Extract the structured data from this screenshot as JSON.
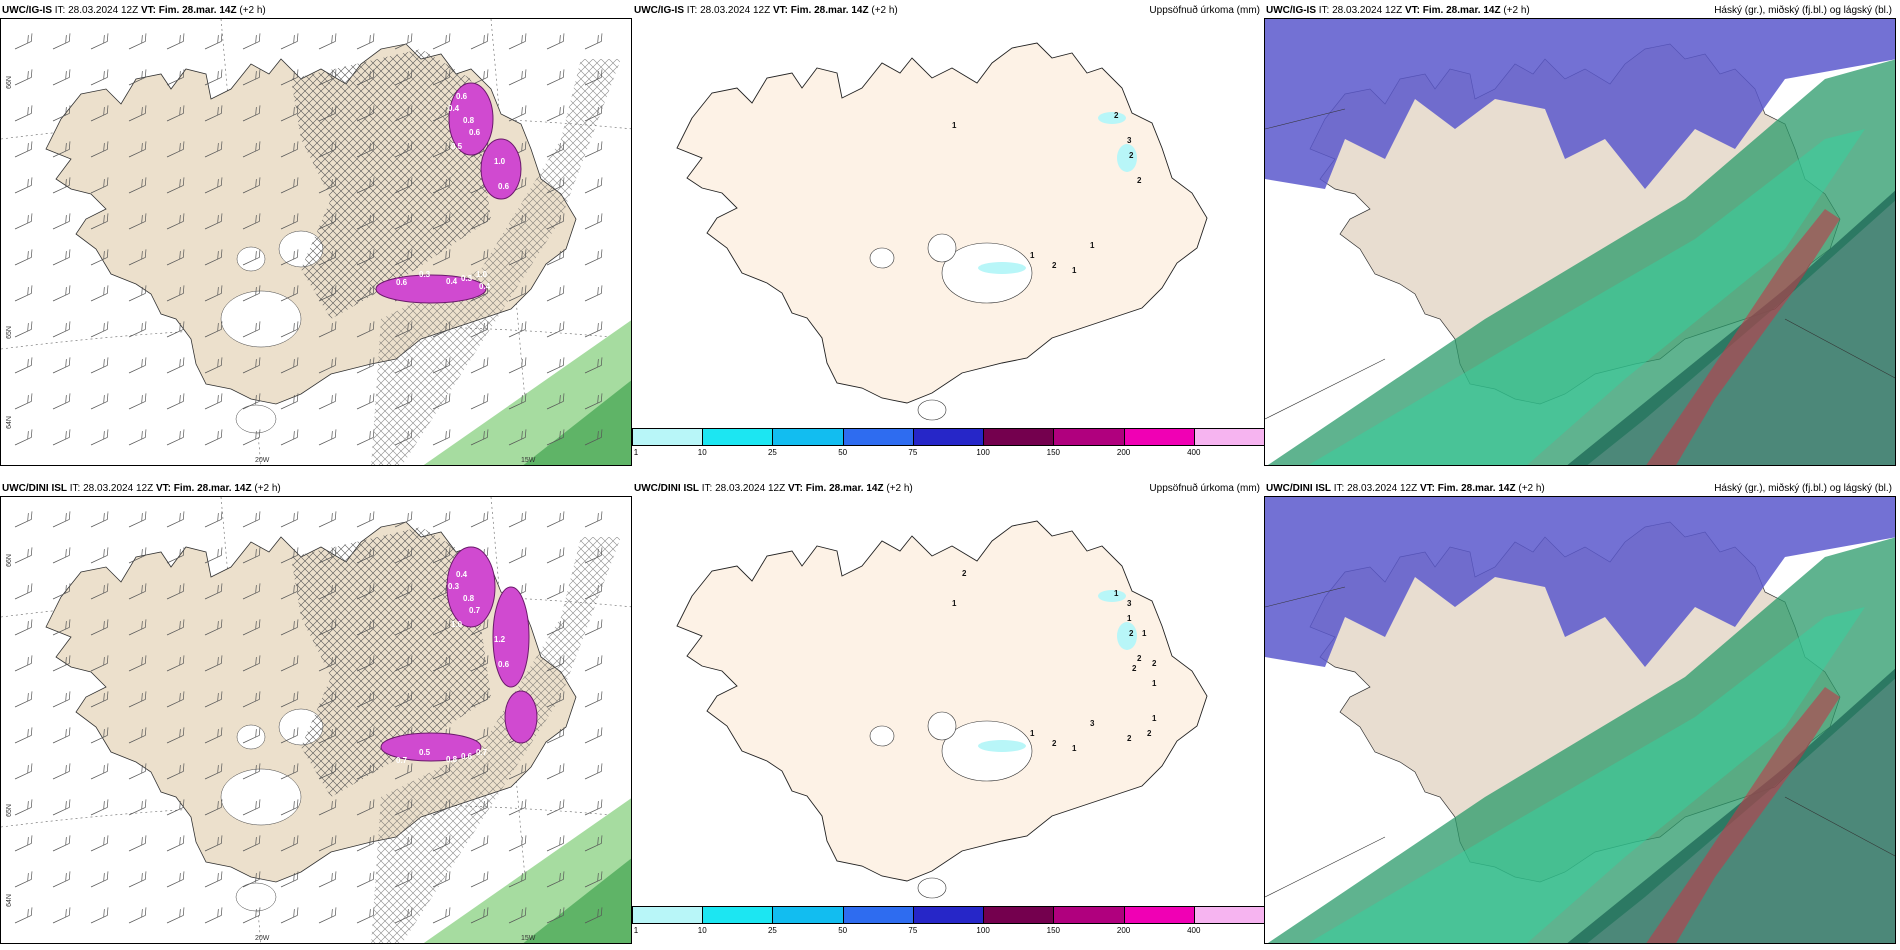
{
  "rows": [
    {
      "model": "UWC/IG-IS",
      "it_label": "IT:",
      "it_value": "28.03.2024 12Z",
      "vt_label": "VT:",
      "vt_value": "Fim. 28.mar. 14Z",
      "lead": "(+2 h)",
      "precip_title": "Uppsöfnuð úrkoma (mm)",
      "cloud_title": "Háský (gr.), miðský (fj.bl.) og lágský (bl.)",
      "lat_labels": [
        "66N",
        "65N",
        "64N"
      ],
      "lon_labels": [
        "20W",
        "15W"
      ],
      "precip_numbers": [
        "1",
        "2",
        "3",
        "2",
        "2",
        "1",
        "2",
        "1",
        "1"
      ],
      "wind_numbers": [
        "0.6",
        "0.4",
        "0.8",
        "0.6",
        "0.5",
        "1.0",
        "0.6",
        "0.3",
        "0.6",
        "0.4",
        "0.3",
        "1.0",
        "0.4"
      ]
    },
    {
      "model": "UWC/DINI ISL",
      "it_label": "IT:",
      "it_value": "28.03.2024 12Z",
      "vt_label": "VT:",
      "vt_value": "Fim. 28.mar. 14Z",
      "lead": "(+2 h)",
      "precip_title": "Uppsöfnuð úrkoma (mm)",
      "cloud_title": "Háský (gr.), miðský (fj.bl.) og lágský (bl.)",
      "lat_labels": [
        "66N",
        "65N",
        "64N"
      ],
      "lon_labels": [
        "20W",
        "15W"
      ],
      "precip_numbers": [
        "1",
        "1",
        "1",
        "2",
        "2",
        "1",
        "2",
        "1",
        "3",
        "2",
        "3",
        "1",
        "2",
        "2",
        "1",
        "1",
        "2",
        "2"
      ],
      "wind_numbers": [
        "0.4",
        "0.3",
        "0.8",
        "0.7",
        "1.0",
        "1.2",
        "0.6",
        "0.5",
        "0.7",
        "0.8",
        "0.6",
        "0.7"
      ]
    }
  ],
  "colorbar": {
    "labels": [
      "1",
      "10",
      "25",
      "50",
      "75",
      "100",
      "150",
      "200",
      "400"
    ],
    "colors": [
      "#b8f6f8",
      "#1ce6f2",
      "#12bdf0",
      "#2e6cf0",
      "#2626c8",
      "#74004e",
      "#b0007e",
      "#f000b4",
      "#f6b4f0"
    ]
  },
  "colors": {
    "land": "#ece0cc",
    "land_precip": "#fdf2e6",
    "sea": "#ffffff",
    "high_cloud": "#5a58cc",
    "mid_cloud": "#2a9a6a",
    "low_cloud": "#1f6a58",
    "wind_pink": "#d04ad0"
  }
}
